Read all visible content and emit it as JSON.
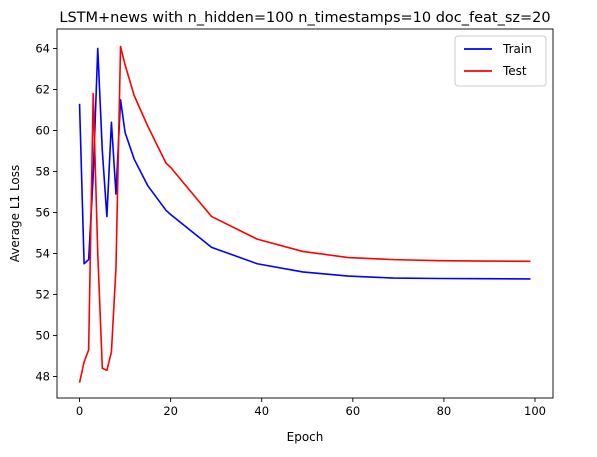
{
  "chart_data": {
    "type": "line",
    "title": "LSTM+news with n_hidden=100 n_timestamps=10 doc_feat_sz=20",
    "xlabel": "Epoch",
    "ylabel": "Average L1 Loss",
    "xlim": [
      -4.95,
      103.95
    ],
    "ylim": [
      46.95,
      64.95
    ],
    "xticks": [
      0,
      20,
      40,
      60,
      80,
      100
    ],
    "yticks": [
      48,
      50,
      52,
      54,
      56,
      58,
      60,
      62,
      64
    ],
    "grid": false,
    "legend_position": "top-right",
    "series": [
      {
        "name": "Train",
        "color": "#0000ff",
        "x": [
          0,
          1,
          2,
          3,
          4,
          5,
          6,
          7,
          8,
          9,
          10,
          12,
          15,
          19,
          20,
          29,
          39,
          49,
          59,
          69,
          79,
          89,
          99
        ],
        "y": [
          61.3,
          53.5,
          53.7,
          57.8,
          64.0,
          59.0,
          55.8,
          60.4,
          56.9,
          61.5,
          59.9,
          58.6,
          57.3,
          56.1,
          55.9,
          54.3,
          53.5,
          53.1,
          52.9,
          52.8,
          52.78,
          52.77,
          52.76
        ]
      },
      {
        "name": "Test",
        "color": "#ff0000",
        "x": [
          0,
          1,
          2,
          3,
          4,
          5,
          6,
          7,
          8,
          9,
          10,
          12,
          15,
          19,
          20,
          29,
          39,
          49,
          59,
          69,
          79,
          89,
          99
        ],
        "y": [
          47.7,
          48.7,
          49.3,
          61.8,
          54.0,
          48.4,
          48.3,
          49.2,
          53.3,
          64.1,
          63.2,
          61.7,
          60.2,
          58.4,
          58.2,
          55.8,
          54.7,
          54.1,
          53.8,
          53.7,
          53.65,
          53.63,
          53.62
        ]
      }
    ]
  }
}
